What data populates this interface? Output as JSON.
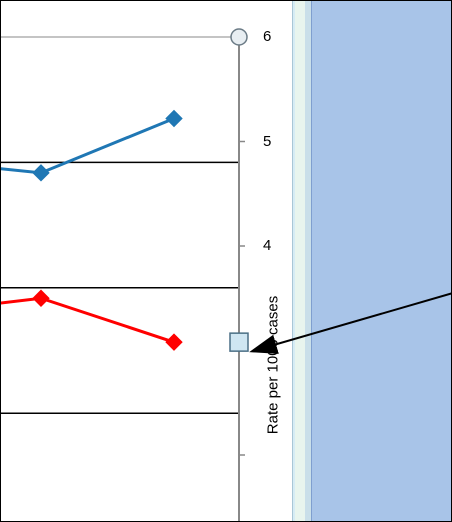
{
  "chart_data": {
    "type": "line",
    "ylabel": "Rate per 1000 cases",
    "ylim": [
      1.4,
      6.1
    ],
    "y_ticks": [
      {
        "value": 6,
        "label": "6"
      },
      {
        "value": 5,
        "label": "5"
      },
      {
        "value": 4,
        "label": "4"
      }
    ],
    "grid_values": [
      4.8,
      3.6,
      2.4
    ],
    "series": [
      {
        "color": "#1f77b4",
        "marker": "diamond",
        "points": [
          [
            -1,
            4.83
          ],
          [
            0,
            4.7
          ],
          [
            1,
            5.22
          ]
        ]
      },
      {
        "color": "#ff0000",
        "marker": "diamond",
        "points": [
          [
            -1,
            3.35
          ],
          [
            0,
            3.5
          ],
          [
            1,
            3.08
          ]
        ]
      }
    ],
    "axis_handles": {
      "top_circle": 6,
      "square": 3.08
    }
  },
  "colors": {
    "panel": "#a8c4e8",
    "splitter": "#e8f5ee",
    "arrow": "#000000"
  }
}
